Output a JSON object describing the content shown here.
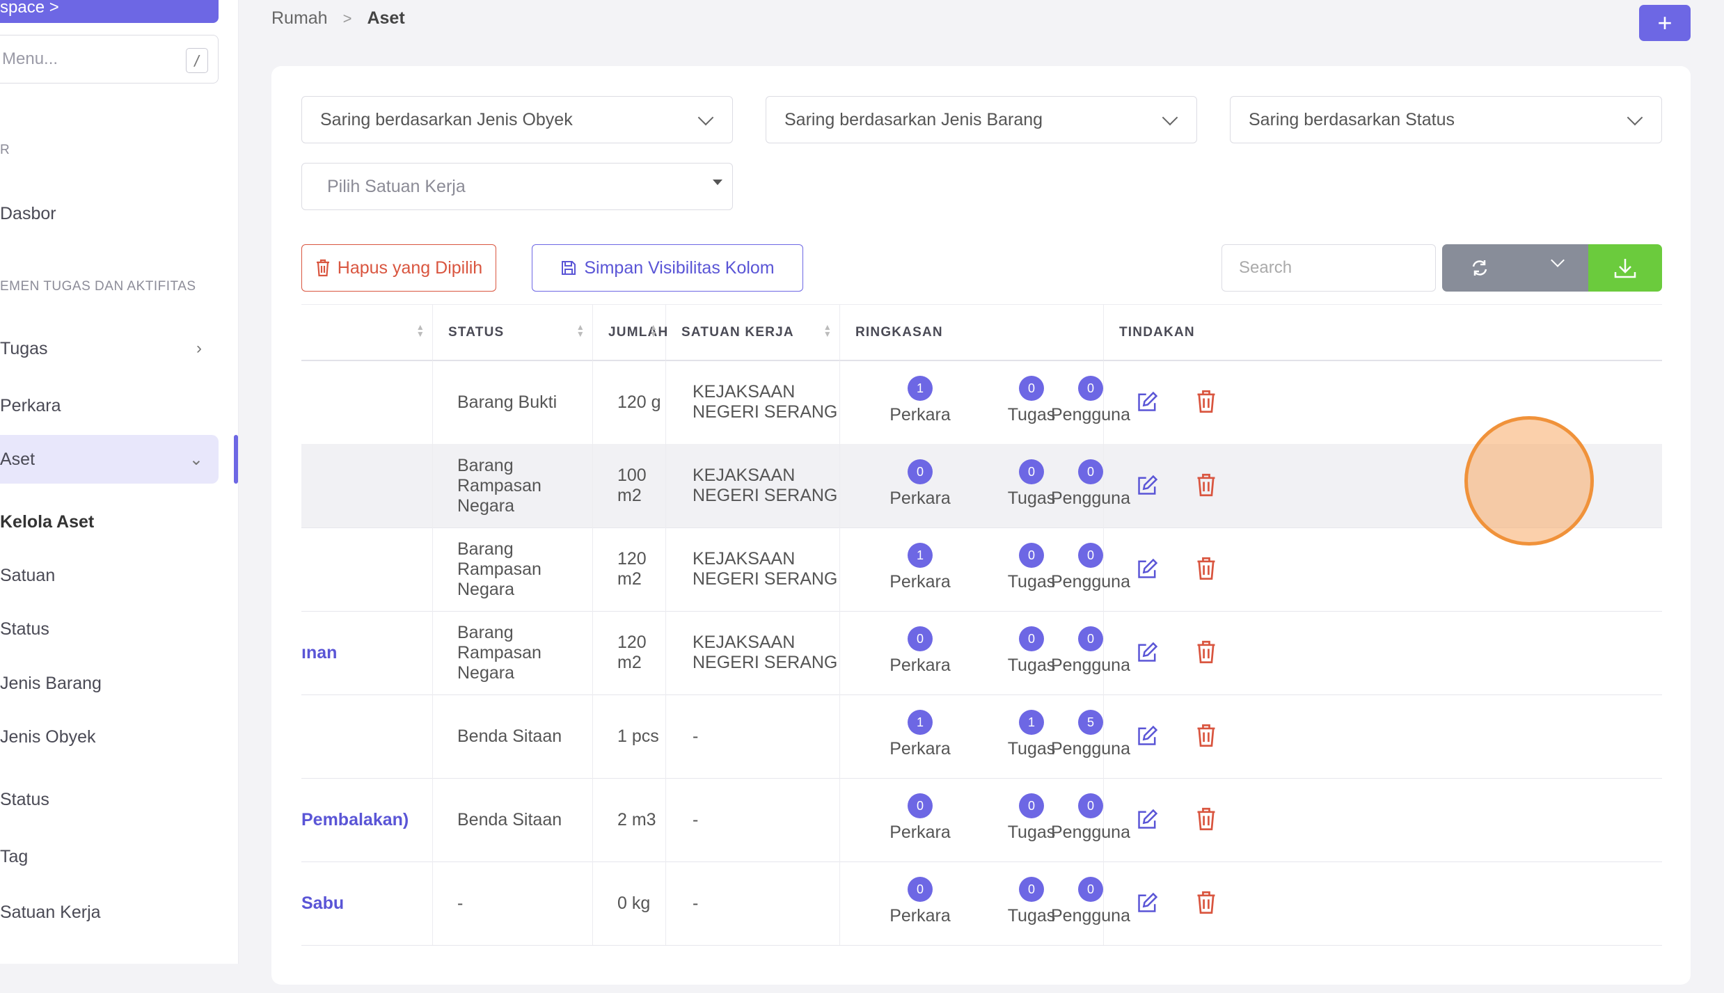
{
  "sidebar": {
    "workspace_label": "space  >",
    "menu_search_placeholder": "Menu...",
    "menu_search_shortcut": "/",
    "section1": "R",
    "dashboard": "Dasbor",
    "section2": "EMEN TUGAS DAN AKTIFITAS",
    "tasks": "Tugas",
    "cases": "Perkara",
    "assets": "Aset",
    "assets_sub": [
      "Kelola Aset",
      "Satuan",
      "Status",
      "Jenis Barang",
      "Jenis Obyek"
    ],
    "status": "Status",
    "tag": "Tag",
    "work_unit": "Satuan Kerja"
  },
  "breadcrumb": {
    "home": "Rumah",
    "separator": ">",
    "current": "Aset"
  },
  "add_button": "+",
  "filters": {
    "object_type": "Saring berdasarkan Jenis Obyek",
    "item_type": "Saring berdasarkan Jenis Barang",
    "status": "Saring berdasarkan Status",
    "work_unit_placeholder": "Pilih Satuan Kerja"
  },
  "toolbar": {
    "delete_selected": "Hapus yang Dipilih",
    "save_visibility": "Simpan Visibilitas Kolom",
    "search_placeholder": "Search"
  },
  "table": {
    "headers": [
      "STATUS",
      "JUMLAH",
      "SATUAN KERJA",
      "RINGKASAN",
      "TINDAKAN"
    ],
    "summary_labels": [
      "Perkara",
      "Tugas",
      "Pengguna"
    ],
    "rows": [
      {
        "name": "",
        "status": "Barang Bukti",
        "qty": "120 g",
        "unit": "KEJAKSAAN NEGERI SERANG",
        "perkara": "1",
        "tugas": "0",
        "pengguna": "0"
      },
      {
        "name": "",
        "status": "Barang Rampasan Negara",
        "qty": "100 m2",
        "unit": "KEJAKSAAN NEGERI SERANG",
        "perkara": "0",
        "tugas": "0",
        "pengguna": "0"
      },
      {
        "name": "",
        "status": "Barang Rampasan Negara",
        "qty": "120 m2",
        "unit": "KEJAKSAAN NEGERI SERANG",
        "perkara": "1",
        "tugas": "0",
        "pengguna": "0"
      },
      {
        "name": "ınan",
        "status": "Barang Rampasan Negara",
        "qty": "120 m2",
        "unit": "KEJAKSAAN NEGERI SERANG",
        "perkara": "0",
        "tugas": "0",
        "pengguna": "0"
      },
      {
        "name": "",
        "status": "Benda Sitaan",
        "qty": "1 pcs",
        "unit": "-",
        "perkara": "1",
        "tugas": "1",
        "pengguna": "5"
      },
      {
        "name": "Pembalakan)",
        "status": "Benda Sitaan",
        "qty": "2 m3",
        "unit": "-",
        "perkara": "0",
        "tugas": "0",
        "pengguna": "0"
      },
      {
        "name": "Sabu",
        "status": "-",
        "qty": "0 kg",
        "unit": "-",
        "perkara": "0",
        "tugas": "0",
        "pengguna": "0"
      }
    ]
  },
  "colors": {
    "accent": "#6d67e4",
    "danger": "#d9553f",
    "success": "#6bcb3d",
    "marker": "#f0923a"
  },
  "icons": [
    "chevron-down-icon",
    "trash-icon",
    "save-icon",
    "refresh-icon",
    "download-icon",
    "edit-icon",
    "plus-icon"
  ]
}
